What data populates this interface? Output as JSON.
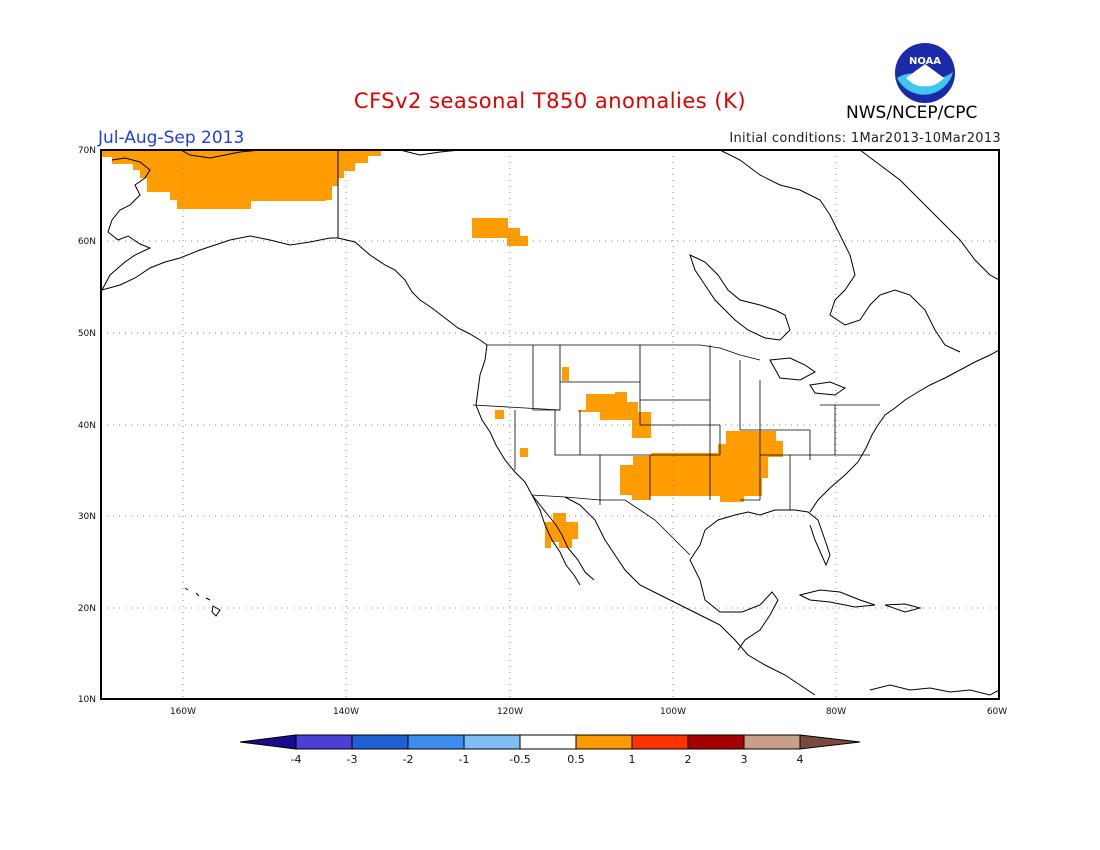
{
  "header": {
    "title": "CFSv2 seasonal T850 anomalies (K)",
    "period": "Jul-Aug-Sep 2013",
    "initial_conditions": "Initial conditions: 1Mar2013-10Mar2013",
    "agency": "NWS/NCEP/CPC",
    "logo_text": "NOAA"
  },
  "map": {
    "lat_labels": [
      "70N",
      "60N",
      "50N",
      "40N",
      "30N",
      "20N",
      "10N"
    ],
    "lon_labels": [
      "160W",
      "140W",
      "120W",
      "100W",
      "80W",
      "60W"
    ],
    "lat_range": [
      10,
      70
    ],
    "lon_range": [
      -170,
      -60
    ]
  },
  "colorbar": {
    "labels": [
      "-4",
      "-3",
      "-2",
      "-1",
      "-0.5",
      "0.5",
      "1",
      "2",
      "3",
      "4"
    ],
    "colors": [
      "#1a0a8c",
      "#4b3fd6",
      "#1e5fd1",
      "#3b8ef0",
      "#80bdf5",
      "#ffffff",
      "#ff9900",
      "#ff3300",
      "#a50000",
      "#c8a08a",
      "#7a4a3a"
    ]
  },
  "anomaly_color": "#ff9d00"
}
